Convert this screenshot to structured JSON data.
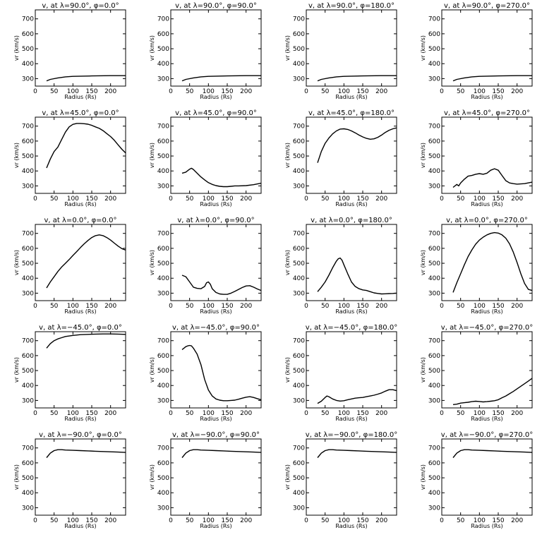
{
  "chart_data": {
    "type": "line",
    "rows": 5,
    "cols": 4,
    "xlabel": "Radius (Rs)",
    "ylabel": "vr (km/s)",
    "xlim": [
      0,
      240
    ],
    "ylim": [
      250,
      760
    ],
    "xticks": [
      0,
      50,
      100,
      150,
      200
    ],
    "yticks": [
      300,
      400,
      500,
      600,
      700
    ],
    "grid": false,
    "line_color": "#000000",
    "panels": [
      {
        "title": "v, at λ=90.0°, φ=0.0°",
        "x": [
          30,
          40,
          60,
          80,
          100,
          150,
          200,
          240
        ],
        "y": [
          285,
          295,
          305,
          312,
          315,
          318,
          320,
          320
        ]
      },
      {
        "title": "v, at λ=90.0°, φ=90.0°",
        "x": [
          30,
          40,
          60,
          80,
          100,
          150,
          200,
          240
        ],
        "y": [
          285,
          295,
          305,
          312,
          315,
          318,
          320,
          320
        ]
      },
      {
        "title": "v, at λ=90.0°, φ=180.0°",
        "x": [
          30,
          40,
          60,
          80,
          100,
          150,
          200,
          240
        ],
        "y": [
          285,
          295,
          305,
          312,
          315,
          318,
          320,
          320
        ]
      },
      {
        "title": "v, at λ=90.0°, φ=270.0°",
        "x": [
          30,
          40,
          60,
          80,
          100,
          150,
          200,
          240
        ],
        "y": [
          285,
          295,
          305,
          312,
          315,
          318,
          320,
          320
        ]
      },
      {
        "title": "v, at λ=45.0°, φ=0.0°",
        "x": [
          30,
          40,
          50,
          60,
          70,
          80,
          90,
          100,
          110,
          120,
          130,
          140,
          150,
          160,
          170,
          180,
          190,
          200,
          210,
          220,
          230,
          240
        ],
        "y": [
          420,
          480,
          530,
          560,
          610,
          660,
          695,
          712,
          718,
          718,
          716,
          713,
          705,
          695,
          685,
          670,
          650,
          630,
          605,
          575,
          545,
          520
        ]
      },
      {
        "title": "v, at λ=45.0°, φ=90.0°",
        "x": [
          30,
          40,
          50,
          55,
          60,
          70,
          80,
          90,
          100,
          110,
          120,
          130,
          140,
          150,
          160,
          170,
          180,
          200,
          220,
          240
        ],
        "y": [
          385,
          392,
          412,
          418,
          410,
          385,
          360,
          340,
          322,
          310,
          302,
          297,
          295,
          295,
          297,
          300,
          300,
          302,
          308,
          318
        ]
      },
      {
        "title": "v, at λ=45.0°, φ=180.0°",
        "x": [
          30,
          40,
          50,
          60,
          70,
          80,
          90,
          100,
          110,
          120,
          130,
          140,
          150,
          160,
          170,
          180,
          190,
          200,
          210,
          220,
          230,
          240
        ],
        "y": [
          455,
          530,
          585,
          620,
          648,
          668,
          680,
          682,
          678,
          668,
          655,
          640,
          628,
          618,
          612,
          615,
          625,
          640,
          658,
          672,
          682,
          688
        ]
      },
      {
        "title": "v, at λ=45.0°, φ=270.0°",
        "x": [
          30,
          40,
          45,
          50,
          60,
          70,
          80,
          90,
          100,
          110,
          120,
          130,
          140,
          150,
          160,
          170,
          180,
          190,
          200,
          220,
          240
        ],
        "y": [
          290,
          310,
          300,
          320,
          345,
          365,
          370,
          378,
          382,
          378,
          385,
          405,
          415,
          405,
          370,
          335,
          320,
          315,
          312,
          315,
          325
        ]
      },
      {
        "title": "v, at λ=0.0°, φ=0.0°",
        "x": [
          30,
          40,
          50,
          60,
          70,
          80,
          90,
          100,
          110,
          120,
          130,
          140,
          150,
          160,
          170,
          180,
          190,
          200,
          210,
          220,
          230,
          240
        ],
        "y": [
          335,
          375,
          410,
          445,
          475,
          500,
          525,
          552,
          578,
          605,
          630,
          653,
          672,
          685,
          690,
          685,
          672,
          655,
          635,
          615,
          598,
          588
        ]
      },
      {
        "title": "v, at λ=0.0°, φ=90.0°",
        "x": [
          30,
          40,
          50,
          60,
          70,
          80,
          90,
          95,
          100,
          105,
          110,
          120,
          130,
          140,
          150,
          160,
          170,
          180,
          190,
          200,
          210,
          220,
          230,
          240
        ],
        "y": [
          420,
          410,
          375,
          340,
          332,
          330,
          345,
          370,
          375,
          360,
          330,
          305,
          295,
          292,
          292,
          300,
          312,
          325,
          338,
          348,
          350,
          340,
          328,
          318
        ]
      },
      {
        "title": "v, at λ=0.0°, φ=180.0°",
        "x": [
          30,
          40,
          50,
          60,
          70,
          80,
          85,
          90,
          95,
          100,
          110,
          120,
          130,
          140,
          150,
          160,
          170,
          180,
          190,
          200,
          210,
          220,
          230,
          240
        ],
        "y": [
          310,
          340,
          375,
          420,
          470,
          515,
          530,
          535,
          520,
          490,
          430,
          375,
          345,
          330,
          322,
          318,
          310,
          302,
          298,
          295,
          296,
          297,
          298,
          300
        ]
      },
      {
        "title": "v, at λ=0.0°, φ=270.0°",
        "x": [
          30,
          40,
          50,
          60,
          70,
          80,
          90,
          100,
          110,
          120,
          130,
          140,
          150,
          160,
          170,
          180,
          190,
          200,
          210,
          220,
          230,
          240
        ],
        "y": [
          305,
          370,
          430,
          490,
          545,
          590,
          628,
          655,
          675,
          690,
          700,
          705,
          702,
          690,
          668,
          630,
          575,
          505,
          430,
          365,
          325,
          318
        ]
      },
      {
        "title": "v, at λ=−45.0°, φ=0.0°",
        "x": [
          30,
          40,
          50,
          60,
          70,
          80,
          100,
          120,
          140,
          160,
          180,
          200,
          220,
          240
        ],
        "y": [
          650,
          680,
          700,
          712,
          720,
          728,
          735,
          740,
          742,
          744,
          745,
          745,
          744,
          742
        ]
      },
      {
        "title": "v, at λ=−45.0°, φ=90.0°",
        "x": [
          30,
          35,
          40,
          45,
          50,
          55,
          60,
          70,
          80,
          90,
          100,
          110,
          120,
          130,
          140,
          150,
          160,
          170,
          180,
          190,
          200,
          210,
          220,
          230,
          240
        ],
        "y": [
          640,
          650,
          660,
          665,
          668,
          665,
          650,
          610,
          540,
          440,
          370,
          330,
          310,
          302,
          298,
          298,
          300,
          302,
          308,
          315,
          322,
          325,
          320,
          312,
          305
        ]
      },
      {
        "title": "v, at λ=−45.0°, φ=180.0°",
        "x": [
          30,
          40,
          50,
          55,
          60,
          70,
          80,
          90,
          100,
          110,
          120,
          130,
          140,
          150,
          160,
          170,
          180,
          190,
          200,
          210,
          220,
          230,
          240
        ],
        "y": [
          280,
          295,
          320,
          330,
          325,
          310,
          300,
          296,
          298,
          305,
          310,
          315,
          318,
          320,
          325,
          330,
          335,
          342,
          350,
          362,
          372,
          372,
          365
        ]
      },
      {
        "title": "v, at λ=−45.0°, φ=270.0°",
        "x": [
          30,
          40,
          50,
          60,
          70,
          80,
          90,
          100,
          110,
          120,
          130,
          140,
          150,
          160,
          170,
          180,
          190,
          200,
          210,
          220,
          230,
          240
        ],
        "y": [
          272,
          275,
          282,
          285,
          288,
          292,
          295,
          293,
          290,
          292,
          295,
          298,
          305,
          318,
          330,
          345,
          360,
          378,
          395,
          412,
          430,
          448
        ]
      },
      {
        "title": "v, at λ=−90.0°, φ=0.0°",
        "x": [
          30,
          40,
          50,
          60,
          70,
          80,
          100,
          120,
          140,
          160,
          180,
          200,
          220,
          240
        ],
        "y": [
          635,
          665,
          682,
          688,
          688,
          686,
          684,
          682,
          680,
          678,
          676,
          674,
          672,
          670
        ]
      },
      {
        "title": "v, at λ=−90.0°, φ=90.0°",
        "x": [
          30,
          40,
          50,
          60,
          70,
          80,
          100,
          120,
          140,
          160,
          180,
          200,
          220,
          240
        ],
        "y": [
          635,
          665,
          682,
          688,
          688,
          686,
          684,
          682,
          680,
          678,
          676,
          674,
          672,
          670
        ]
      },
      {
        "title": "v, at λ=−90.0°, φ=180.0°",
        "x": [
          30,
          40,
          50,
          60,
          70,
          80,
          100,
          120,
          140,
          160,
          180,
          200,
          220,
          240
        ],
        "y": [
          635,
          665,
          682,
          688,
          688,
          686,
          684,
          682,
          680,
          678,
          676,
          674,
          672,
          670
        ]
      },
      {
        "title": "v, at λ=−90.0°, φ=270.0°",
        "x": [
          30,
          40,
          50,
          60,
          70,
          80,
          100,
          120,
          140,
          160,
          180,
          200,
          220,
          240
        ],
        "y": [
          635,
          665,
          682,
          688,
          688,
          686,
          684,
          682,
          680,
          678,
          676,
          674,
          672,
          670
        ]
      }
    ]
  }
}
